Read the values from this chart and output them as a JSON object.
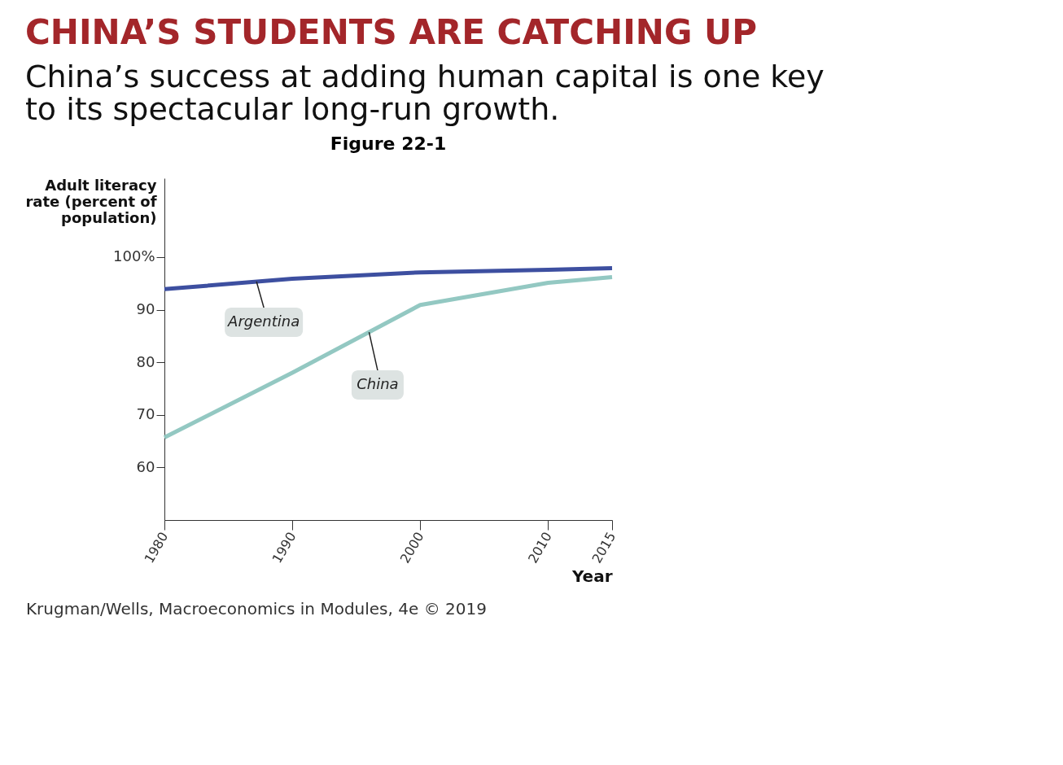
{
  "chart_data": {
    "type": "line",
    "title": "CHINA’S STUDENTS ARE CATCHING UP",
    "subtitle": "China’s success at adding human capital is one key to its spectacular long-run growth.",
    "xlabel": "Year",
    "ylabel": "Adult literacy rate (percent of population)",
    "annotations": [
      "Figure 22-1",
      "Krugman/Wells, Macroeconomics in Modules, 4e © 2019"
    ],
    "x": [
      1980,
      1990,
      2000,
      2010,
      2015
    ],
    "series": [
      {
        "name": "Argentina",
        "color": "#3d4fa0",
        "values": [
          93.9,
          95.9,
          97.1,
          97.6,
          97.9
        ]
      },
      {
        "name": "China",
        "color": "#93c8c2",
        "values": [
          65.7,
          78.0,
          90.9,
          95.1,
          96.2
        ]
      }
    ],
    "xlim": [
      1980,
      2015
    ],
    "xticks": [
      1980,
      1990,
      2000,
      2010,
      2015
    ],
    "ylim": [
      50,
      115
    ],
    "yticks": [
      60,
      70,
      80,
      90,
      {
        "value": 100,
        "label": "100%"
      }
    ],
    "grid": false,
    "legend": false,
    "marker": "none",
    "line_style": "solid"
  }
}
